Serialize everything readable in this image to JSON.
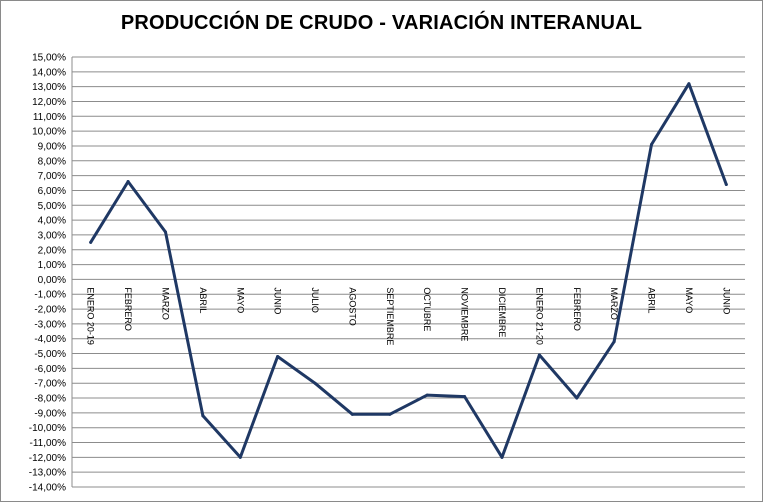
{
  "chart_data": {
    "type": "line",
    "title": "PRODUCCIÓN DE CRUDO - VARIACIÓN INTERANUAL",
    "xlabel": "",
    "ylabel": "",
    "ylim": [
      -14,
      15
    ],
    "ytick_step": 1,
    "ytick_labels": [
      "15,00%",
      "14,00%",
      "13,00%",
      "12,00%",
      "11,00%",
      "10,00%",
      "9,00%",
      "8,00%",
      "7,00%",
      "6,00%",
      "5,00%",
      "4,00%",
      "3,00%",
      "2,00%",
      "1,00%",
      "0,00%",
      "-1,00%",
      "-2,00%",
      "-3,00%",
      "-4,00%",
      "-5,00%",
      "-6,00%",
      "-7,00%",
      "-8,00%",
      "-9,00%",
      "-10,00%",
      "-11,00%",
      "-12,00%",
      "-13,00%",
      "-14,00%"
    ],
    "grid": true,
    "legend": "none",
    "categories": [
      "ENERO 20-19",
      "FEBRERO",
      "MARZO",
      "ABRIL",
      "MAYO",
      "JUNIO",
      "JULIO",
      "AGOSTO",
      "SEPTIEMBRE",
      "OCTUBRE",
      "NOVIEMBRE",
      "DICIEMBRE",
      "ENERO 21-20",
      "FEBRERO",
      "MARZO",
      "ABRIL",
      "MAYO",
      "JUNIO"
    ],
    "series": [
      {
        "values": [
          2.5,
          6.6,
          3.2,
          -9.2,
          -12.0,
          -5.2,
          -7.0,
          -9.1,
          -9.1,
          -7.8,
          -7.9,
          -12.0,
          -5.1,
          -8.0,
          -4.2,
          9.1,
          13.2,
          6.4
        ]
      }
    ],
    "colors": {
      "line": "#1f3864",
      "grid": "#8c8c8c"
    }
  }
}
